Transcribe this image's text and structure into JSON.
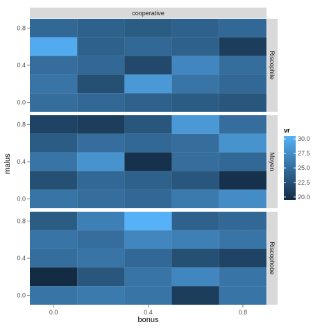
{
  "chart_data": {
    "type": "heatmap",
    "facet_top_label": "cooperative",
    "xlabel": "bonus",
    "ylabel": "malus",
    "x_tick_labels": [
      "0.0",
      "0.4",
      "0.8"
    ],
    "y_tick_labels": [
      "0.0",
      "0.4",
      "0.8"
    ],
    "x_values": [
      0.0,
      0.2,
      0.4,
      0.6,
      0.8
    ],
    "y_values": [
      0.0,
      0.2,
      0.4,
      0.6,
      0.8
    ],
    "xlim": [
      -0.1,
      0.9
    ],
    "ylim": [
      -0.1,
      0.9
    ],
    "legend": {
      "title": "vr",
      "labels": [
        "30.0",
        "27.5",
        "25.0",
        "22.5",
        "20.0"
      ],
      "values": [
        30.0,
        27.5,
        25.0,
        22.5,
        20.0
      ],
      "range": [
        19.5,
        30.5
      ],
      "low_color": "#132B43",
      "high_color": "#56B1F7"
    },
    "panels": [
      {
        "label": "Riscophile",
        "rows_top_to_bottom": [
          [
            24.5,
            24.0,
            23.5,
            24.0,
            24.5
          ],
          [
            30.0,
            24.0,
            24.5,
            24.0,
            21.0
          ],
          [
            25.0,
            24.5,
            22.0,
            27.0,
            25.0
          ],
          [
            25.5,
            22.5,
            28.5,
            25.5,
            24.5
          ],
          [
            25.0,
            24.5,
            24.0,
            23.5,
            23.0
          ]
        ]
      },
      {
        "label": "Moyen",
        "rows_top_to_bottom": [
          [
            21.5,
            21.0,
            23.0,
            28.5,
            25.0
          ],
          [
            23.5,
            25.0,
            24.5,
            25.0,
            28.0
          ],
          [
            25.5,
            28.0,
            20.0,
            25.0,
            24.5
          ],
          [
            22.5,
            24.5,
            24.0,
            23.0,
            20.0
          ],
          [
            25.5,
            25.0,
            24.5,
            26.0,
            27.5
          ]
        ]
      },
      {
        "label": "Riscophobe",
        "rows_top_to_bottom": [
          [
            23.5,
            26.5,
            30.5,
            24.0,
            24.5
          ],
          [
            25.5,
            25.0,
            27.0,
            26.5,
            25.5
          ],
          [
            25.0,
            25.5,
            24.5,
            22.5,
            21.5
          ],
          [
            19.5,
            23.0,
            25.5,
            27.0,
            25.5
          ],
          [
            25.5,
            26.0,
            25.5,
            21.0,
            25.5
          ]
        ]
      }
    ]
  }
}
